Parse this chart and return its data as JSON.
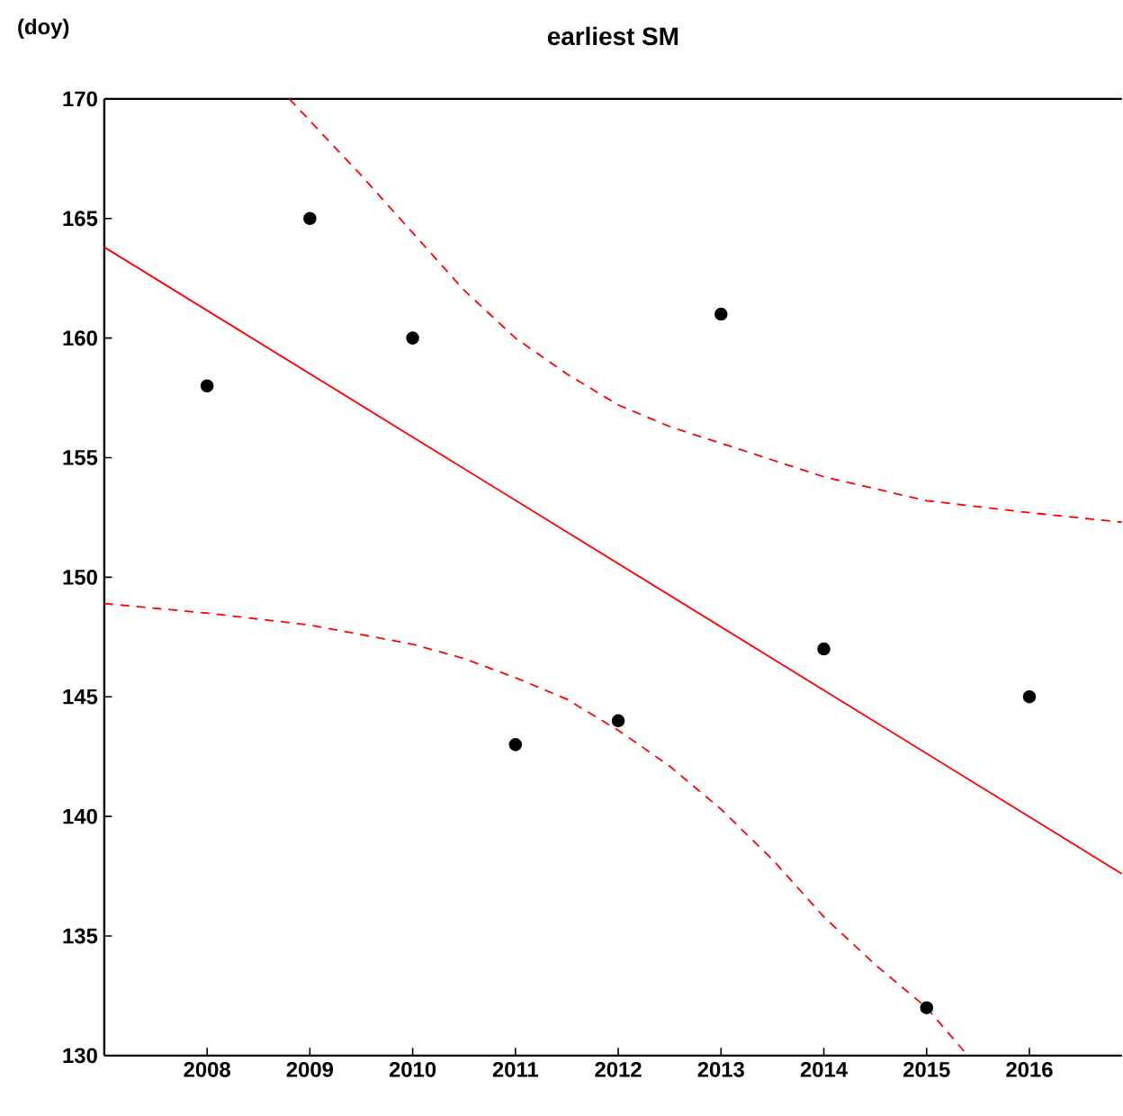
{
  "chart_data": {
    "type": "scatter",
    "title": "earliest SM",
    "ylabel": "(doy)",
    "x": [
      2008,
      2009,
      2010,
      2011,
      2012,
      2013,
      2014,
      2015,
      2016
    ],
    "xlim": [
      2007,
      2016.9
    ],
    "ylim": [
      130,
      170
    ],
    "xticks": [
      2008,
      2009,
      2010,
      2011,
      2012,
      2013,
      2014,
      2015,
      2016
    ],
    "yticks": [
      130,
      135,
      140,
      145,
      150,
      155,
      160,
      165,
      170
    ],
    "grid": false,
    "series": [
      {
        "color": "#000000",
        "marker": "circle",
        "values": [
          158,
          165,
          160,
          143,
          144,
          161,
          147,
          132,
          145
        ]
      },
      {
        "type": "line",
        "color": "#ff0000",
        "line_style": "solid",
        "marker": "none",
        "x": [
          2007,
          2016.9
        ],
        "values": [
          163.8,
          137.6
        ]
      },
      {
        "type": "line",
        "color": "#ff0000",
        "line_style": "dashed",
        "marker": "none",
        "x": [
          2008.8,
          2009.5,
          2010,
          2010.5,
          2011,
          2011.5,
          2012,
          2012.5,
          2013,
          2014,
          2015,
          2016,
          2016.9
        ],
        "values": [
          170,
          166.8,
          164.4,
          162,
          160,
          158.5,
          157.2,
          156.3,
          155.6,
          154.2,
          153.2,
          152.7,
          152.3
        ]
      },
      {
        "type": "line",
        "color": "#ff0000",
        "line_style": "dashed",
        "marker": "none",
        "x": [
          2007,
          2008,
          2009,
          2010,
          2010.5,
          2011,
          2011.5,
          2012,
          2012.5,
          2013,
          2013.5,
          2014,
          2014.5,
          2015,
          2015.4
        ],
        "values": [
          148.9,
          148.5,
          148,
          147.2,
          146.6,
          145.8,
          144.9,
          143.6,
          142.1,
          140.3,
          138.2,
          135.8,
          133.8,
          132,
          130
        ]
      }
    ]
  }
}
